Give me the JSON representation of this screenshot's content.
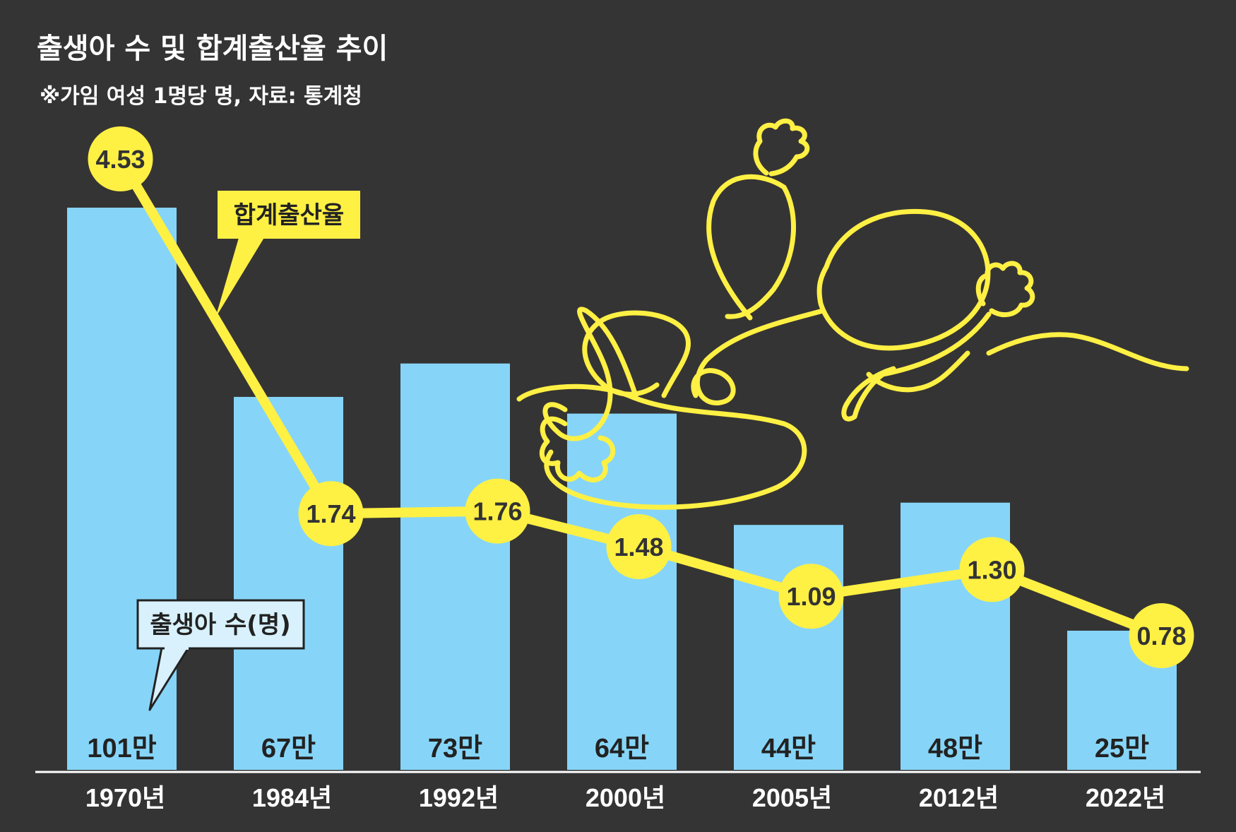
{
  "title": "출생아 수 및 합계출산율 추이",
  "subtitle": "※가임 여성 1명당 명, 자료: 통계청",
  "colors": {
    "background": "#353434",
    "bar": "#86d5f8",
    "line": "#fff044",
    "text_light": "#ffffff",
    "text_dark": "#222222"
  },
  "chart_data": {
    "type": "bar",
    "categories": [
      "1970년",
      "1984년",
      "1992년",
      "2000년",
      "2005년",
      "2012년",
      "2022년"
    ],
    "series": [
      {
        "name": "출생아 수(명)",
        "type": "bar",
        "values": [
          1010000,
          670000,
          730000,
          640000,
          440000,
          480000,
          250000
        ],
        "labels": [
          "101만",
          "67만",
          "73만",
          "64만",
          "44만",
          "48만",
          "25만"
        ]
      },
      {
        "name": "합계출산율",
        "type": "line",
        "values": [
          4.53,
          1.74,
          1.76,
          1.48,
          1.09,
          1.3,
          0.78
        ],
        "labels": [
          "4.53",
          "1.74",
          "1.76",
          "1.48",
          "1.09",
          "1.30",
          "0.78"
        ]
      }
    ],
    "legend": {
      "rate": "합계출산율",
      "births": "출생아 수(명)"
    },
    "decoration": "line-drawing-of-a-baby"
  }
}
